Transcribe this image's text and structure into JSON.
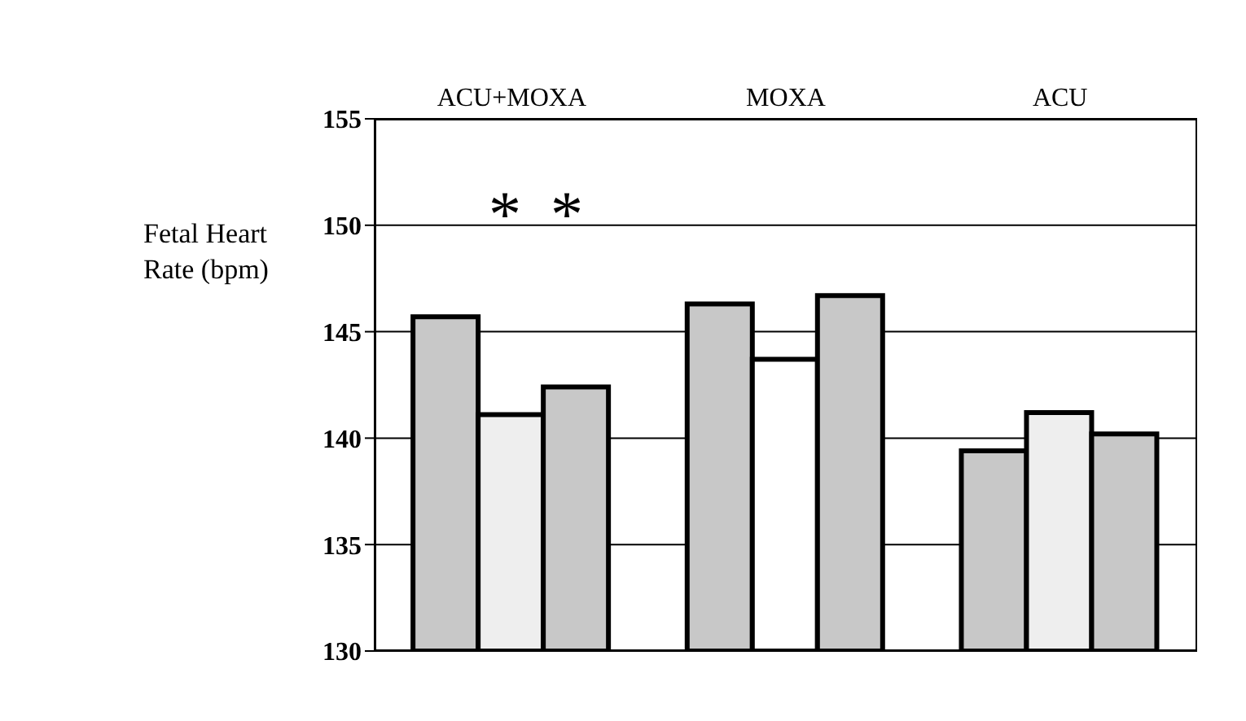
{
  "chart_data": {
    "type": "bar",
    "ylabel": "Fetal Heart Rate (bpm)",
    "categories": [
      "ACU+MOXA",
      "MOXA",
      "ACU"
    ],
    "series": [
      {
        "color": "#c8c8c8",
        "values": [
          145.7,
          146.3,
          139.4
        ]
      },
      {
        "colors": [
          "#eeeeee",
          "#ffffff",
          "#eeeeee"
        ],
        "values": [
          141.1,
          143.7,
          141.2
        ]
      },
      {
        "color": "#c8c8c8",
        "values": [
          142.4,
          146.7,
          140.2
        ]
      }
    ],
    "ylim": [
      130,
      155
    ],
    "yticks": [
      130,
      135,
      140,
      145,
      150,
      155
    ],
    "grid": "y",
    "legend": false,
    "annotations": [
      "*",
      "*"
    ]
  }
}
